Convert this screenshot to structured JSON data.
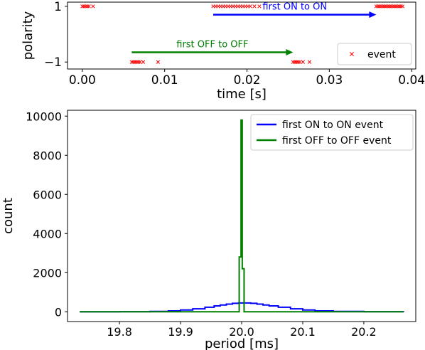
{
  "chart_data": [
    {
      "type": "scatter",
      "xlabel": "time [s]",
      "ylabel": "polarity",
      "xlim": [
        -0.0018,
        0.0405
      ],
      "ylim": [
        -1.25,
        1.15
      ],
      "xticks": [
        0.0,
        0.01,
        0.02,
        0.03,
        0.04
      ],
      "xtick_labels": [
        "0.00",
        "0.01",
        "0.02",
        "0.03",
        "0.04"
      ],
      "yticks": [
        1,
        -1
      ],
      "ytick_labels": [
        "1",
        "−1"
      ],
      "legend": {
        "position": "bottom-right",
        "entries": [
          {
            "label": "event",
            "color": "#ff0000",
            "marker": "x"
          }
        ]
      },
      "series": [
        {
          "name": "event",
          "color": "#ff0000",
          "marker": "x",
          "points": [
            [
              0.0,
              1
            ],
            [
              0.0002,
              1
            ],
            [
              0.0004,
              1
            ],
            [
              0.0006,
              1
            ],
            [
              0.0008,
              1
            ],
            [
              0.0013,
              1
            ],
            [
              0.006,
              -1
            ],
            [
              0.0062,
              -1
            ],
            [
              0.0064,
              -1
            ],
            [
              0.0066,
              -1
            ],
            [
              0.0068,
              -1
            ],
            [
              0.007,
              -1
            ],
            [
              0.0074,
              -1
            ],
            [
              0.0092,
              -1
            ],
            [
              0.0159,
              1
            ],
            [
              0.0162,
              1
            ],
            [
              0.0165,
              1
            ],
            [
              0.0168,
              1
            ],
            [
              0.0171,
              1
            ],
            [
              0.0174,
              1
            ],
            [
              0.0177,
              1
            ],
            [
              0.018,
              1
            ],
            [
              0.0183,
              1
            ],
            [
              0.0186,
              1
            ],
            [
              0.0189,
              1
            ],
            [
              0.0192,
              1
            ],
            [
              0.0195,
              1
            ],
            [
              0.0198,
              1
            ],
            [
              0.0201,
              1
            ],
            [
              0.0204,
              1
            ],
            [
              0.0209,
              1
            ],
            [
              0.0215,
              1
            ],
            [
              0.0256,
              -1
            ],
            [
              0.0258,
              -1
            ],
            [
              0.026,
              -1
            ],
            [
              0.0262,
              -1
            ],
            [
              0.0264,
              -1
            ],
            [
              0.0268,
              -1
            ],
            [
              0.0276,
              -1
            ],
            [
              0.0357,
              1
            ],
            [
              0.0359,
              1
            ],
            [
              0.0361,
              1
            ],
            [
              0.0363,
              1
            ],
            [
              0.0365,
              1
            ],
            [
              0.0367,
              1
            ],
            [
              0.0369,
              1
            ],
            [
              0.0371,
              1
            ],
            [
              0.0373,
              1
            ],
            [
              0.0375,
              1
            ],
            [
              0.0377,
              1
            ],
            [
              0.0379,
              1
            ],
            [
              0.0381,
              1
            ],
            [
              0.0383,
              1
            ],
            [
              0.0385,
              1
            ],
            [
              0.0387,
              1
            ],
            [
              0.0389,
              1
            ]
          ]
        }
      ],
      "annotations": [
        {
          "text": "first ON to ON",
          "color": "#0000ff",
          "x_start": 0.0159,
          "x_end": 0.0357,
          "y": 0.7
        },
        {
          "text": "first OFF to OFF",
          "color": "#008000",
          "x_start": 0.006,
          "x_end": 0.0256,
          "y": -0.65
        }
      ]
    },
    {
      "type": "line",
      "xlabel": "period [ms]",
      "ylabel": "count",
      "xlim": [
        19.715,
        20.285
      ],
      "ylim": [
        -500,
        10300
      ],
      "xticks": [
        19.8,
        19.9,
        20.0,
        20.1,
        20.2
      ],
      "xtick_labels": [
        "19.8",
        "19.9",
        "20.0",
        "20.1",
        "20.2"
      ],
      "yticks": [
        0,
        2000,
        4000,
        6000,
        8000,
        10000
      ],
      "ytick_labels": [
        "0",
        "2000",
        "4000",
        "6000",
        "8000",
        "10000"
      ],
      "legend": {
        "position": "top-right"
      },
      "series": [
        {
          "name": "first ON to ON event",
          "color": "#0000ff",
          "x": [
            19.735,
            19.8,
            19.85,
            19.88,
            19.9,
            19.92,
            19.94,
            19.955,
            19.965,
            19.975,
            19.985,
            19.995,
            20.005,
            20.015,
            20.025,
            20.035,
            20.045,
            20.06,
            20.08,
            20.1,
            20.12,
            20.15,
            20.2,
            20.265
          ],
          "values": [
            0,
            5,
            20,
            45,
            90,
            150,
            230,
            300,
            345,
            390,
            430,
            450,
            450,
            430,
            390,
            345,
            300,
            230,
            150,
            90,
            45,
            20,
            5,
            0
          ]
        },
        {
          "name": "first OFF to OFF event",
          "color": "#008000",
          "x": [
            19.735,
            19.995,
            19.996,
            19.998,
            19.999,
            20.0,
            20.001,
            20.002,
            20.004,
            20.005,
            20.265
          ],
          "values": [
            0,
            0,
            2800,
            2800,
            9800,
            9800,
            2200,
            2200,
            0,
            0,
            0
          ]
        }
      ]
    }
  ]
}
